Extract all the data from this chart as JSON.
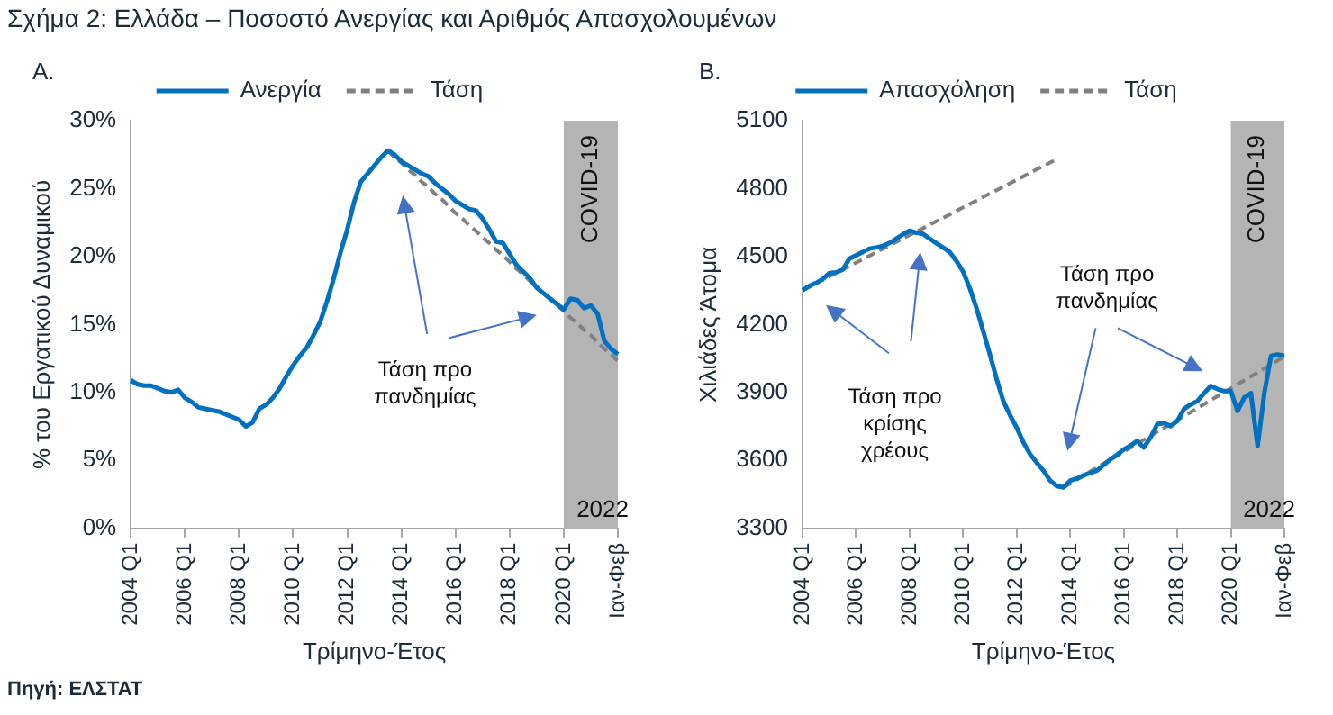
{
  "chart_data": [
    {
      "type": "line",
      "title": "Σχήμα 2: Ελλάδα – Ποσοστό Ανεργίας και Αριθμός Απασχολουμένων",
      "subtitle": "Α.",
      "xlabel": "Τρίμηνο-Έτος",
      "ylabel": "% του Εργατικού Δυναμικού",
      "categories": [
        "2004 Q1",
        null,
        null,
        null,
        null,
        null,
        null,
        null,
        "2006 Q1",
        null,
        null,
        null,
        null,
        null,
        null,
        null,
        "2008 Q1",
        null,
        null,
        null,
        null,
        null,
        null,
        null,
        "2010 Q1",
        null,
        null,
        null,
        null,
        null,
        null,
        null,
        "2012 Q1",
        null,
        null,
        null,
        null,
        null,
        null,
        null,
        "2014 Q1",
        null,
        null,
        null,
        null,
        null,
        null,
        null,
        "2016 Q1",
        null,
        null,
        null,
        null,
        null,
        null,
        null,
        "2018 Q1",
        null,
        null,
        null,
        null,
        null,
        null,
        null,
        "2020 Q1",
        null,
        null,
        null,
        null,
        null,
        null,
        null,
        "Ιαν-Φεβ"
      ],
      "series": [
        {
          "name": "Ανεργία",
          "color": "#0070c0",
          "values": [
            10.9,
            10.6,
            10.5,
            10.5,
            10.3,
            10.1,
            10.0,
            10.2,
            9.6,
            9.3,
            8.9,
            8.8,
            8.7,
            8.6,
            8.4,
            8.2,
            8.0,
            7.5,
            7.8,
            8.8,
            9.1,
            9.6,
            10.3,
            11.2,
            12.0,
            12.7,
            13.3,
            14.2,
            15.2,
            16.7,
            18.4,
            20.3,
            22.0,
            24.0,
            25.5,
            26.1,
            26.7,
            27.3,
            27.8,
            27.5,
            27.0,
            26.7,
            26.4,
            26.1,
            25.9,
            25.4,
            25.0,
            24.6,
            24.1,
            23.8,
            23.5,
            23.4,
            22.8,
            22.0,
            21.1,
            21.0,
            20.2,
            19.4,
            18.9,
            18.4,
            17.7,
            17.3,
            16.9,
            16.5,
            16.1,
            16.9,
            16.8,
            16.2,
            16.4,
            15.8,
            13.8,
            13.2,
            12.8
          ]
        },
        {
          "name": "Τάση",
          "color": "#808080",
          "line_style": "dashed",
          "values": [
            null,
            null,
            null,
            null,
            null,
            null,
            null,
            null,
            null,
            null,
            null,
            null,
            null,
            null,
            null,
            null,
            null,
            null,
            null,
            null,
            null,
            null,
            null,
            null,
            null,
            null,
            null,
            null,
            null,
            null,
            null,
            null,
            null,
            null,
            null,
            null,
            null,
            null,
            27.8,
            27.3,
            26.9,
            26.4,
            26.0,
            25.5,
            25.1,
            24.6,
            24.2,
            23.7,
            23.2,
            22.8,
            22.3,
            21.9,
            21.4,
            21.0,
            20.5,
            20.1,
            19.6,
            19.1,
            18.7,
            18.2,
            17.8,
            17.3,
            16.9,
            16.4,
            16.0,
            15.5,
            15.1,
            14.6,
            14.2,
            13.7,
            13.2,
            12.8,
            12.3
          ]
        }
      ],
      "ylim": [
        0,
        30
      ],
      "yticks": [
        {
          "value": 0,
          "label": "0%"
        },
        {
          "value": 5,
          "label": "5%"
        },
        {
          "value": 10,
          "label": "10%"
        },
        {
          "value": 15,
          "label": "15%"
        },
        {
          "value": 20,
          "label": "20%"
        },
        {
          "value": 25,
          "label": "25%"
        },
        {
          "value": 30,
          "label": "30%"
        }
      ],
      "bands": [
        {
          "axis": "x",
          "from": "2020 Q1",
          "to": "Ιαν-Φεβ",
          "label": "COVID-19",
          "color": "#b4b4b4"
        }
      ],
      "annotations": [
        "Τάση προ πανδημίας",
        "2022",
        "Πηγή: ΕΛΣΤΑΤ"
      ],
      "legend": "top",
      "marker": "none"
    },
    {
      "type": "line",
      "subtitle": "Β.",
      "xlabel": "Τρίμηνο-Έτος",
      "ylabel": "Χιλιάδες Άτομα",
      "categories": [
        "2004 Q1",
        null,
        null,
        null,
        null,
        null,
        null,
        null,
        "2006 Q1",
        null,
        null,
        null,
        null,
        null,
        null,
        null,
        "2008 Q1",
        null,
        null,
        null,
        null,
        null,
        null,
        null,
        "2010 Q1",
        null,
        null,
        null,
        null,
        null,
        null,
        null,
        "2012 Q1",
        null,
        null,
        null,
        null,
        null,
        null,
        null,
        "2014 Q1",
        null,
        null,
        null,
        null,
        null,
        null,
        null,
        "2016 Q1",
        null,
        null,
        null,
        null,
        null,
        null,
        null,
        "2018 Q1",
        null,
        null,
        null,
        null,
        null,
        null,
        null,
        "2020 Q1",
        null,
        null,
        null,
        null,
        null,
        null,
        null,
        "Ιαν-Φεβ"
      ],
      "series": [
        {
          "name": "Απασχόληση",
          "color": "#0070c0",
          "values": [
            4351,
            4370,
            4383,
            4400,
            4427,
            4430,
            4442,
            4491,
            4506,
            4520,
            4535,
            4540,
            4547,
            4560,
            4579,
            4598,
            4614,
            4605,
            4600,
            4579,
            4559,
            4540,
            4520,
            4480,
            4433,
            4360,
            4272,
            4170,
            4067,
            3960,
            3862,
            3800,
            3745,
            3680,
            3628,
            3590,
            3555,
            3511,
            3487,
            3481,
            3511,
            3520,
            3534,
            3545,
            3555,
            3580,
            3604,
            3625,
            3648,
            3665,
            3686,
            3657,
            3701,
            3760,
            3765,
            3751,
            3774,
            3827,
            3847,
            3862,
            3897,
            3929,
            3915,
            3906,
            3906,
            3818,
            3877,
            3897,
            3663,
            3897,
            4061,
            4067,
            4061
          ]
        },
        {
          "name": "Τάση",
          "color": "#808080",
          "line_style": "dashed",
          "values": [
            4351,
            4366,
            4381,
            4397,
            4412,
            4427,
            4442,
            4458,
            4473,
            4488,
            4503,
            4519,
            4534,
            4549,
            4564,
            4580,
            4595,
            4610,
            4625,
            4641,
            4656,
            4671,
            4686,
            4702,
            4717,
            4732,
            4747,
            4763,
            4778,
            4793,
            4808,
            4824,
            4839,
            4854,
            4869,
            4885,
            4900,
            4915,
            4930,
            null,
            null,
            null,
            null,
            null,
            null,
            null,
            null,
            null,
            null,
            null,
            null,
            null,
            null,
            null,
            null,
            null,
            null,
            null,
            null,
            null,
            null,
            null,
            null,
            null,
            null,
            null,
            null,
            null,
            null,
            null,
            null,
            null,
            null
          ]
        },
        {
          "color": "#808080",
          "line_style": "dashed",
          "values": [
            null,
            null,
            null,
            null,
            null,
            null,
            null,
            null,
            null,
            null,
            null,
            null,
            null,
            null,
            null,
            null,
            null,
            null,
            null,
            null,
            null,
            null,
            null,
            null,
            null,
            null,
            null,
            null,
            null,
            null,
            null,
            null,
            null,
            null,
            null,
            null,
            null,
            null,
            null,
            3481,
            3498,
            3516,
            3533,
            3551,
            3568,
            3586,
            3603,
            3621,
            3638,
            3656,
            3673,
            3691,
            3708,
            3726,
            3743,
            3761,
            3778,
            3796,
            3813,
            3831,
            3848,
            3866,
            3883,
            3901,
            3918,
            3936,
            3953,
            3971,
            3988,
            4006,
            4023,
            4041,
            4058
          ]
        }
      ],
      "ylim": [
        3300,
        5100
      ],
      "yticks": [
        3300,
        3600,
        3900,
        4200,
        4500,
        4800,
        5100
      ],
      "bands": [
        {
          "axis": "x",
          "from": "2020 Q1",
          "to": "Ιαν-Φεβ",
          "label": "COVID-19",
          "color": "#b4b4b4"
        }
      ],
      "annotations": [
        "Τάση προ κρίσης χρέους",
        "Τάση προ πανδημίας",
        "2022"
      ],
      "legend": "top",
      "marker": "none"
    }
  ]
}
